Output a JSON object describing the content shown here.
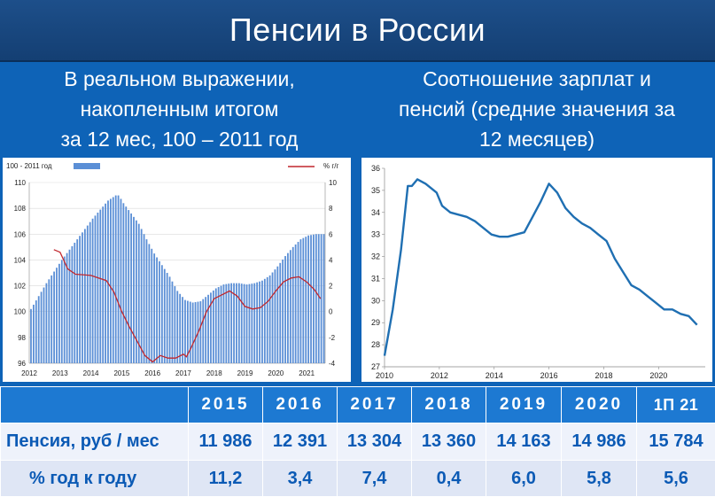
{
  "header": {
    "title": "Пенсии в России"
  },
  "left_subtitle": [
    "В реальном выражении,",
    "накопленным итогом",
    "за 12 мес, 100 – 2011 год"
  ],
  "right_subtitle": [
    "Соотношение зарплат и",
    "пенсий (средние значения за",
    "12 месяцев)"
  ],
  "chart_data": [
    {
      "type": "bar+line",
      "legend": {
        "bars": "100 - 2011 год",
        "line": "% г/г"
      },
      "x_ticks": [
        "2012",
        "2013",
        "2014",
        "2015",
        "2016",
        "2017",
        "2018",
        "2019",
        "2020",
        "2021"
      ],
      "y_left_ticks": [
        "96",
        "98",
        "100",
        "102",
        "104",
        "106",
        "108",
        "110"
      ],
      "y_right_ticks": [
        "-4",
        "-2",
        "0",
        "2",
        "4",
        "6",
        "8",
        "10"
      ],
      "ylim_left": [
        96,
        110
      ],
      "ylim_right": [
        -4,
        10
      ],
      "xlim": [
        2012,
        2021.6
      ],
      "bars": [
        [
          2012.0,
          100.2
        ],
        [
          2012.25,
          101.2
        ],
        [
          2012.5,
          102.2
        ],
        [
          2012.75,
          103.1
        ],
        [
          2013.0,
          104.0
        ],
        [
          2013.25,
          104.8
        ],
        [
          2013.5,
          105.6
        ],
        [
          2013.75,
          106.4
        ],
        [
          2014.0,
          107.2
        ],
        [
          2014.25,
          107.9
        ],
        [
          2014.5,
          108.6
        ],
        [
          2014.75,
          109.0
        ],
        [
          2014.85,
          109.0
        ],
        [
          2015.0,
          108.4
        ],
        [
          2015.25,
          107.6
        ],
        [
          2015.5,
          106.8
        ],
        [
          2015.75,
          105.6
        ],
        [
          2016.0,
          104.5
        ],
        [
          2016.25,
          103.6
        ],
        [
          2016.5,
          102.7
        ],
        [
          2016.75,
          101.6
        ],
        [
          2017.0,
          100.9
        ],
        [
          2017.25,
          100.7
        ],
        [
          2017.5,
          100.8
        ],
        [
          2017.75,
          101.3
        ],
        [
          2018.0,
          101.8
        ],
        [
          2018.25,
          102.1
        ],
        [
          2018.5,
          102.2
        ],
        [
          2018.75,
          102.2
        ],
        [
          2019.0,
          102.1
        ],
        [
          2019.25,
          102.2
        ],
        [
          2019.5,
          102.4
        ],
        [
          2019.75,
          102.8
        ],
        [
          2020.0,
          103.5
        ],
        [
          2020.25,
          104.3
        ],
        [
          2020.5,
          105.0
        ],
        [
          2020.75,
          105.6
        ],
        [
          2021.0,
          105.9
        ],
        [
          2021.25,
          106.0
        ],
        [
          2021.5,
          106.0
        ]
      ],
      "line": [
        [
          2012.8,
          4.8
        ],
        [
          2013.0,
          4.6
        ],
        [
          2013.25,
          3.3
        ],
        [
          2013.5,
          2.9
        ],
        [
          2014.0,
          2.8
        ],
        [
          2014.5,
          2.4
        ],
        [
          2014.75,
          1.5
        ],
        [
          2015.0,
          0.0
        ],
        [
          2015.25,
          -1.2
        ],
        [
          2015.5,
          -2.3
        ],
        [
          2015.75,
          -3.4
        ],
        [
          2016.0,
          -3.9
        ],
        [
          2016.25,
          -3.4
        ],
        [
          2016.5,
          -3.6
        ],
        [
          2016.75,
          -3.6
        ],
        [
          2017.0,
          -3.3
        ],
        [
          2017.1,
          -3.5
        ],
        [
          2017.25,
          -2.8
        ],
        [
          2017.5,
          -1.5
        ],
        [
          2017.75,
          0.0
        ],
        [
          2018.0,
          1.0
        ],
        [
          2018.25,
          1.3
        ],
        [
          2018.5,
          1.6
        ],
        [
          2018.75,
          1.2
        ],
        [
          2019.0,
          0.4
        ],
        [
          2019.25,
          0.2
        ],
        [
          2019.5,
          0.3
        ],
        [
          2019.75,
          0.8
        ],
        [
          2020.0,
          1.6
        ],
        [
          2020.25,
          2.3
        ],
        [
          2020.5,
          2.6
        ],
        [
          2020.75,
          2.7
        ],
        [
          2021.0,
          2.3
        ],
        [
          2021.25,
          1.7
        ],
        [
          2021.45,
          1.0
        ]
      ]
    },
    {
      "type": "line",
      "x_ticks": [
        "2010",
        "2012",
        "2014",
        "2016",
        "2018",
        "2020"
      ],
      "y_ticks": [
        "27",
        "28",
        "29",
        "30",
        "31",
        "32",
        "33",
        "34",
        "35",
        "36"
      ],
      "ylim": [
        27,
        36
      ],
      "xlim": [
        2010,
        2021.7
      ],
      "series": [
        {
          "values": [
            [
              2010.0,
              27.5
            ],
            [
              2010.3,
              29.6
            ],
            [
              2010.6,
              32.3
            ],
            [
              2010.85,
              35.2
            ],
            [
              2011.0,
              35.2
            ],
            [
              2011.2,
              35.5
            ],
            [
              2011.5,
              35.3
            ],
            [
              2011.9,
              34.9
            ],
            [
              2012.1,
              34.3
            ],
            [
              2012.4,
              34.0
            ],
            [
              2012.7,
              33.9
            ],
            [
              2013.0,
              33.8
            ],
            [
              2013.3,
              33.6
            ],
            [
              2013.6,
              33.3
            ],
            [
              2013.9,
              33.0
            ],
            [
              2014.2,
              32.9
            ],
            [
              2014.5,
              32.9
            ],
            [
              2014.8,
              33.0
            ],
            [
              2015.1,
              33.1
            ],
            [
              2015.4,
              33.8
            ],
            [
              2015.7,
              34.5
            ],
            [
              2016.0,
              35.3
            ],
            [
              2016.3,
              34.9
            ],
            [
              2016.6,
              34.2
            ],
            [
              2016.9,
              33.8
            ],
            [
              2017.2,
              33.5
            ],
            [
              2017.5,
              33.3
            ],
            [
              2017.8,
              33.0
            ],
            [
              2018.1,
              32.7
            ],
            [
              2018.4,
              31.9
            ],
            [
              2018.7,
              31.3
            ],
            [
              2019.0,
              30.7
            ],
            [
              2019.3,
              30.5
            ],
            [
              2019.6,
              30.2
            ],
            [
              2019.9,
              29.9
            ],
            [
              2020.2,
              29.6
            ],
            [
              2020.5,
              29.6
            ],
            [
              2020.8,
              29.4
            ],
            [
              2021.1,
              29.3
            ],
            [
              2021.4,
              28.9
            ]
          ]
        }
      ]
    }
  ],
  "table": {
    "years": [
      "2015",
      "2016",
      "2017",
      "2018",
      "2019",
      "2020",
      "1П 21"
    ],
    "rows": [
      {
        "label": "Пенсия, руб / мес",
        "values": [
          "11 986",
          "12 391",
          "13 304",
          "13 360",
          "14 163",
          "14 986",
          "15 784"
        ]
      },
      {
        "label": "% год к году",
        "values": [
          "11,2",
          "3,4",
          "7,4",
          "0,4",
          "6,0",
          "5,8",
          "5,6"
        ]
      }
    ]
  },
  "colors": {
    "bars": "#5b8fd6",
    "line_left": "#c1272d",
    "line_right": "#1f6fb2",
    "background": "#0e63b7",
    "title_bg": "#174578"
  }
}
